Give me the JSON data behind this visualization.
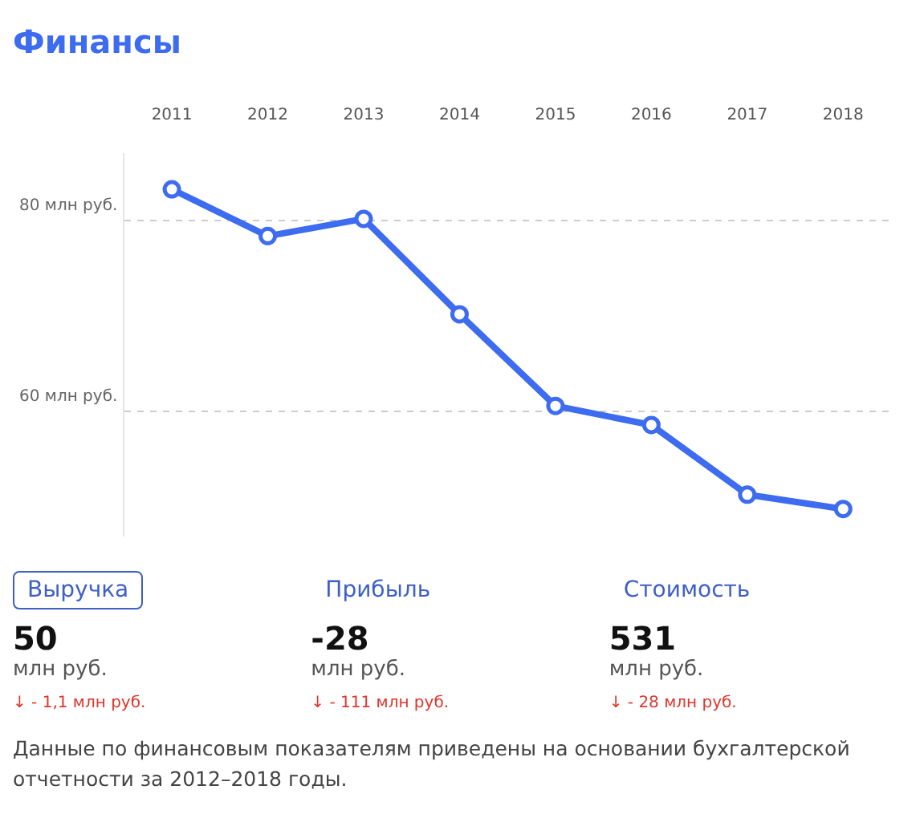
{
  "chart_data": [
    {
      "type": "line",
      "title": "Финансы",
      "categories": [
        "2011",
        "2012",
        "2013",
        "2014",
        "2015",
        "2016",
        "2017",
        "2018"
      ],
      "series": [
        {
          "color": "#3d6cf0",
          "values": [
            83.3,
            78.4,
            80.2,
            70.2,
            60.6,
            58.6,
            51.3,
            49.8
          ]
        }
      ],
      "ylim": [
        47,
        87
      ],
      "yticks": [
        {
          "value": 60,
          "label": "60 млн руб."
        },
        {
          "value": 80,
          "label": "80 млн руб."
        }
      ],
      "grid": "y",
      "legend": false,
      "marker": "circle",
      "line_style": "solid"
    },
    {
      "type": "other",
      "annotations": [
        "Выручка",
        "50",
        "млн руб.",
        "↓ - 1,1 млн руб.",
        "Прибыль",
        "-28",
        "млн руб.",
        "↓ - 111 млн руб.",
        "Стоимость",
        "531",
        "млн руб.",
        "↓ - 28 млн руб.",
        "Данные по финансовым показателям приведены на основании бухгалтерской отчетности за 2012–2018 годы."
      ]
    }
  ]
}
